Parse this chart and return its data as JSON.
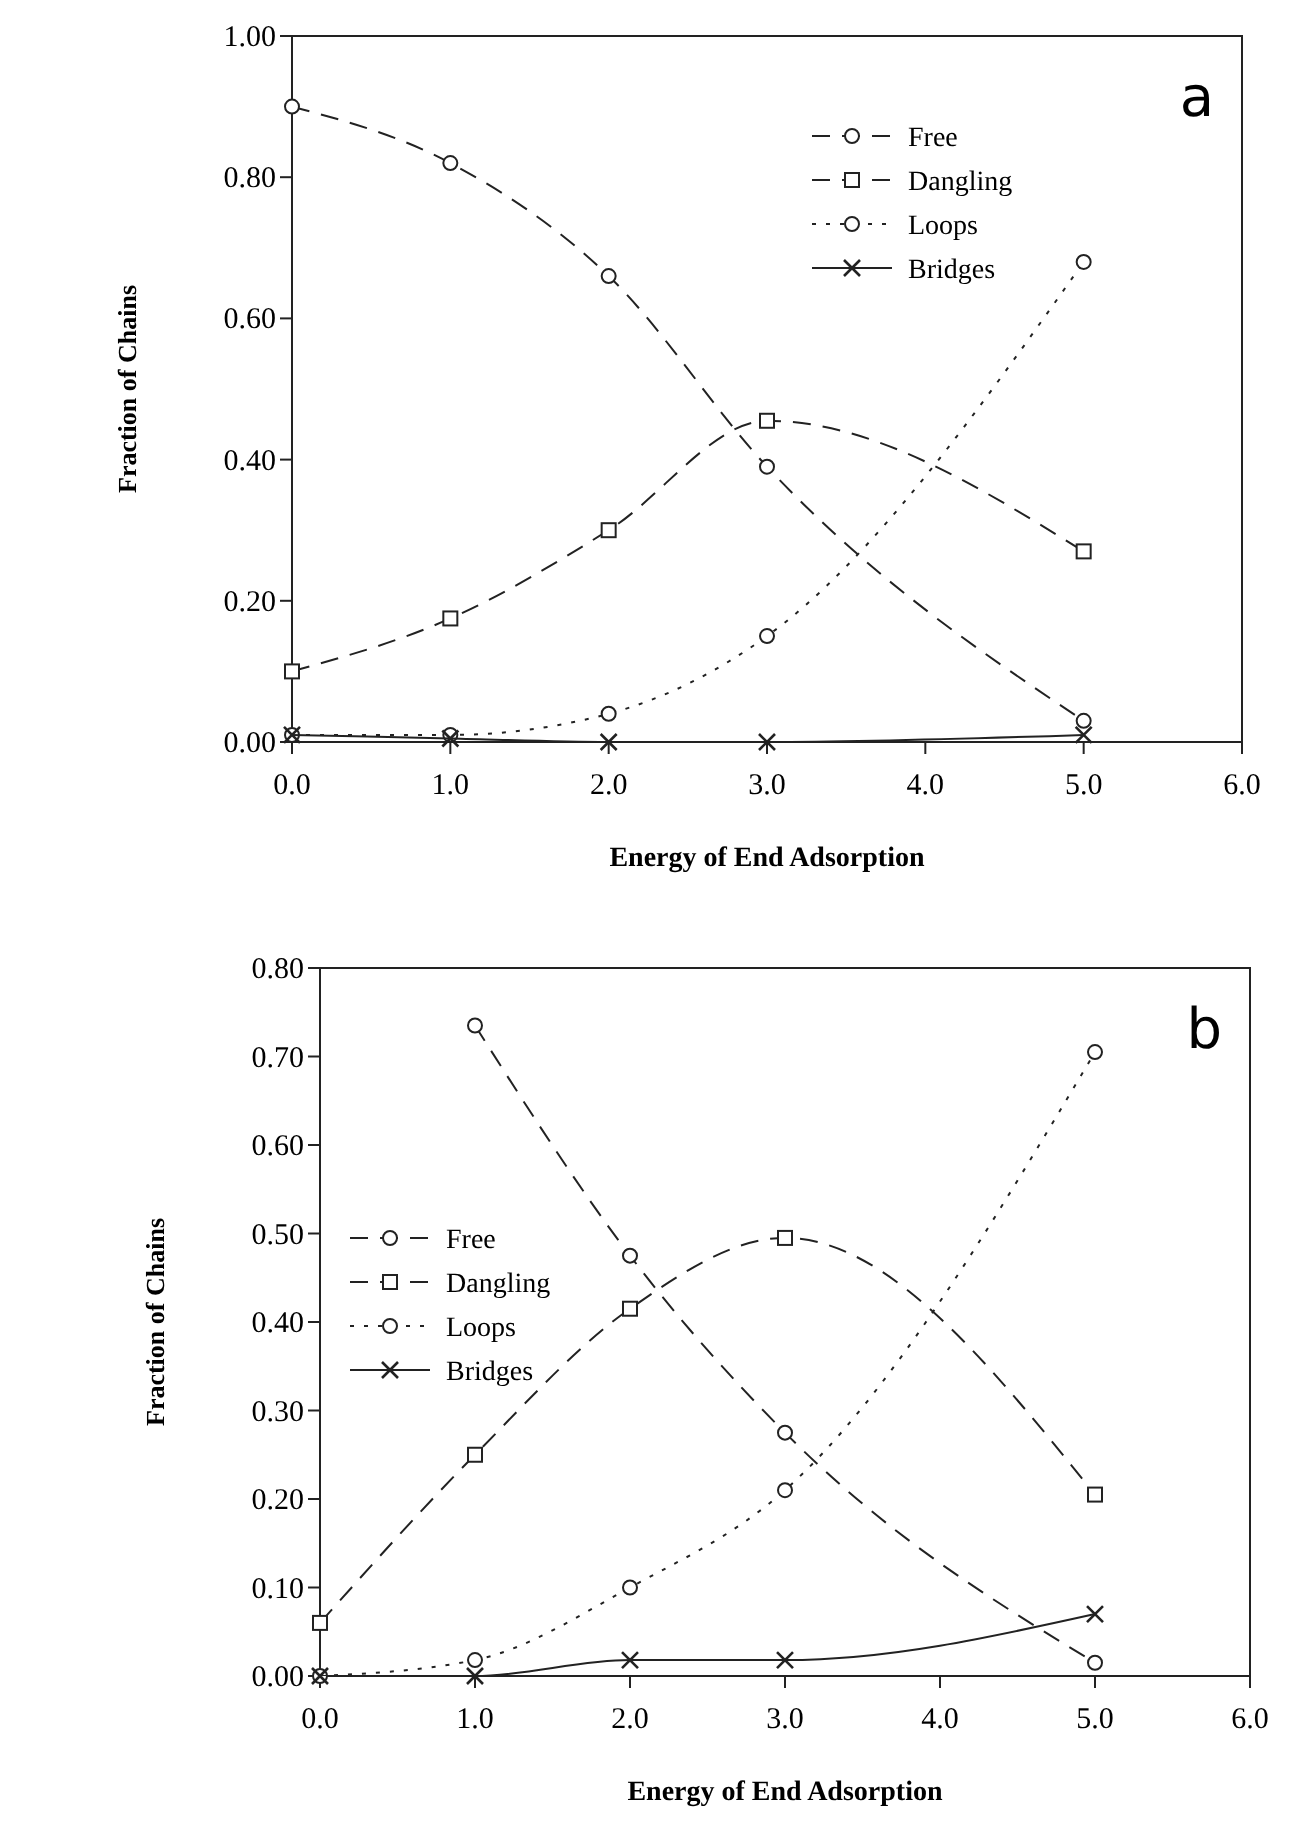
{
  "chart_data": [
    {
      "type": "line",
      "title": "a",
      "xlabel": "Energy of End Adsorption",
      "ylabel": "Fraction of Chains",
      "x": [
        0,
        1,
        2,
        3,
        5
      ],
      "xlim": [
        0,
        6
      ],
      "ylim": [
        0,
        1
      ],
      "xticks": [
        {
          "value": 0,
          "label": "0.0"
        },
        {
          "value": 1,
          "label": "1.0"
        },
        {
          "value": 2,
          "label": "2.0"
        },
        {
          "value": 3,
          "label": "3.0"
        },
        {
          "value": 4,
          "label": "4.0"
        },
        {
          "value": 5,
          "label": "5.0"
        },
        {
          "value": 6,
          "label": "6.0"
        }
      ],
      "yticks": [
        {
          "value": 0,
          "label": "0.00"
        },
        {
          "value": 0.2,
          "label": "0.20"
        },
        {
          "value": 0.4,
          "label": "0.40"
        },
        {
          "value": 0.6,
          "label": "0.60"
        },
        {
          "value": 0.8,
          "label": "0.80"
        },
        {
          "value": 1,
          "label": "1.00"
        }
      ],
      "grid": false,
      "legend": "top right",
      "series": [
        {
          "name": "Free",
          "color": "#222222",
          "values": [
            0.9,
            0.82,
            0.66,
            0.39,
            0.03
          ],
          "marker": "circle",
          "line_style": "dashed"
        },
        {
          "name": "Dangling",
          "color": "#222222",
          "values": [
            0.1,
            0.175,
            0.3,
            0.455,
            0.27
          ],
          "marker": "square",
          "line_style": "dashed"
        },
        {
          "name": "Loops",
          "color": "#222222",
          "values": [
            0.01,
            0.01,
            0.04,
            0.15,
            0.68
          ],
          "marker": "circle",
          "line_style": "dotted"
        },
        {
          "name": "Bridges",
          "color": "#222222",
          "values": [
            0.01,
            0.005,
            0,
            0,
            0.01
          ],
          "marker": "cross",
          "line_style": "solid"
        }
      ]
    },
    {
      "type": "line",
      "title": "b",
      "xlabel": "Energy of End Adsorption",
      "ylabel": "Fraction of Chains",
      "x": [
        0,
        1,
        2,
        3,
        5
      ],
      "xlim": [
        0,
        6
      ],
      "ylim": [
        0,
        0.8
      ],
      "xticks": [
        {
          "value": 0,
          "label": "0.0"
        },
        {
          "value": 1,
          "label": "1.0"
        },
        {
          "value": 2,
          "label": "2.0"
        },
        {
          "value": 3,
          "label": "3.0"
        },
        {
          "value": 4,
          "label": "4.0"
        },
        {
          "value": 5,
          "label": "5.0"
        },
        {
          "value": 6,
          "label": "6.0"
        }
      ],
      "yticks": [
        {
          "value": 0,
          "label": "0.00"
        },
        {
          "value": 0.1,
          "label": "0.10"
        },
        {
          "value": 0.2,
          "label": "0.20"
        },
        {
          "value": 0.3,
          "label": "0.30"
        },
        {
          "value": 0.4,
          "label": "0.40"
        },
        {
          "value": 0.5,
          "label": "0.50"
        },
        {
          "value": 0.6,
          "label": "0.60"
        },
        {
          "value": 0.7,
          "label": "0.70"
        },
        {
          "value": 0.8,
          "label": "0.80"
        }
      ],
      "grid": false,
      "legend": "left",
      "series": [
        {
          "name": "Free",
          "color": "#222222",
          "values": [
            null,
            0.735,
            0.475,
            0.275,
            0.015
          ],
          "marker": "circle",
          "line_style": "dashed"
        },
        {
          "name": "Dangling",
          "color": "#222222",
          "values": [
            0.06,
            0.25,
            0.415,
            0.495,
            0.205
          ],
          "marker": "square",
          "line_style": "dashed"
        },
        {
          "name": "Loops",
          "color": "#222222",
          "values": [
            0,
            0.018,
            0.1,
            0.21,
            0.705
          ],
          "marker": "circle",
          "line_style": "dotted"
        },
        {
          "name": "Bridges",
          "color": "#222222",
          "values": [
            0,
            0,
            0.018,
            0.018,
            0.07
          ],
          "marker": "cross",
          "line_style": "solid"
        }
      ]
    }
  ]
}
